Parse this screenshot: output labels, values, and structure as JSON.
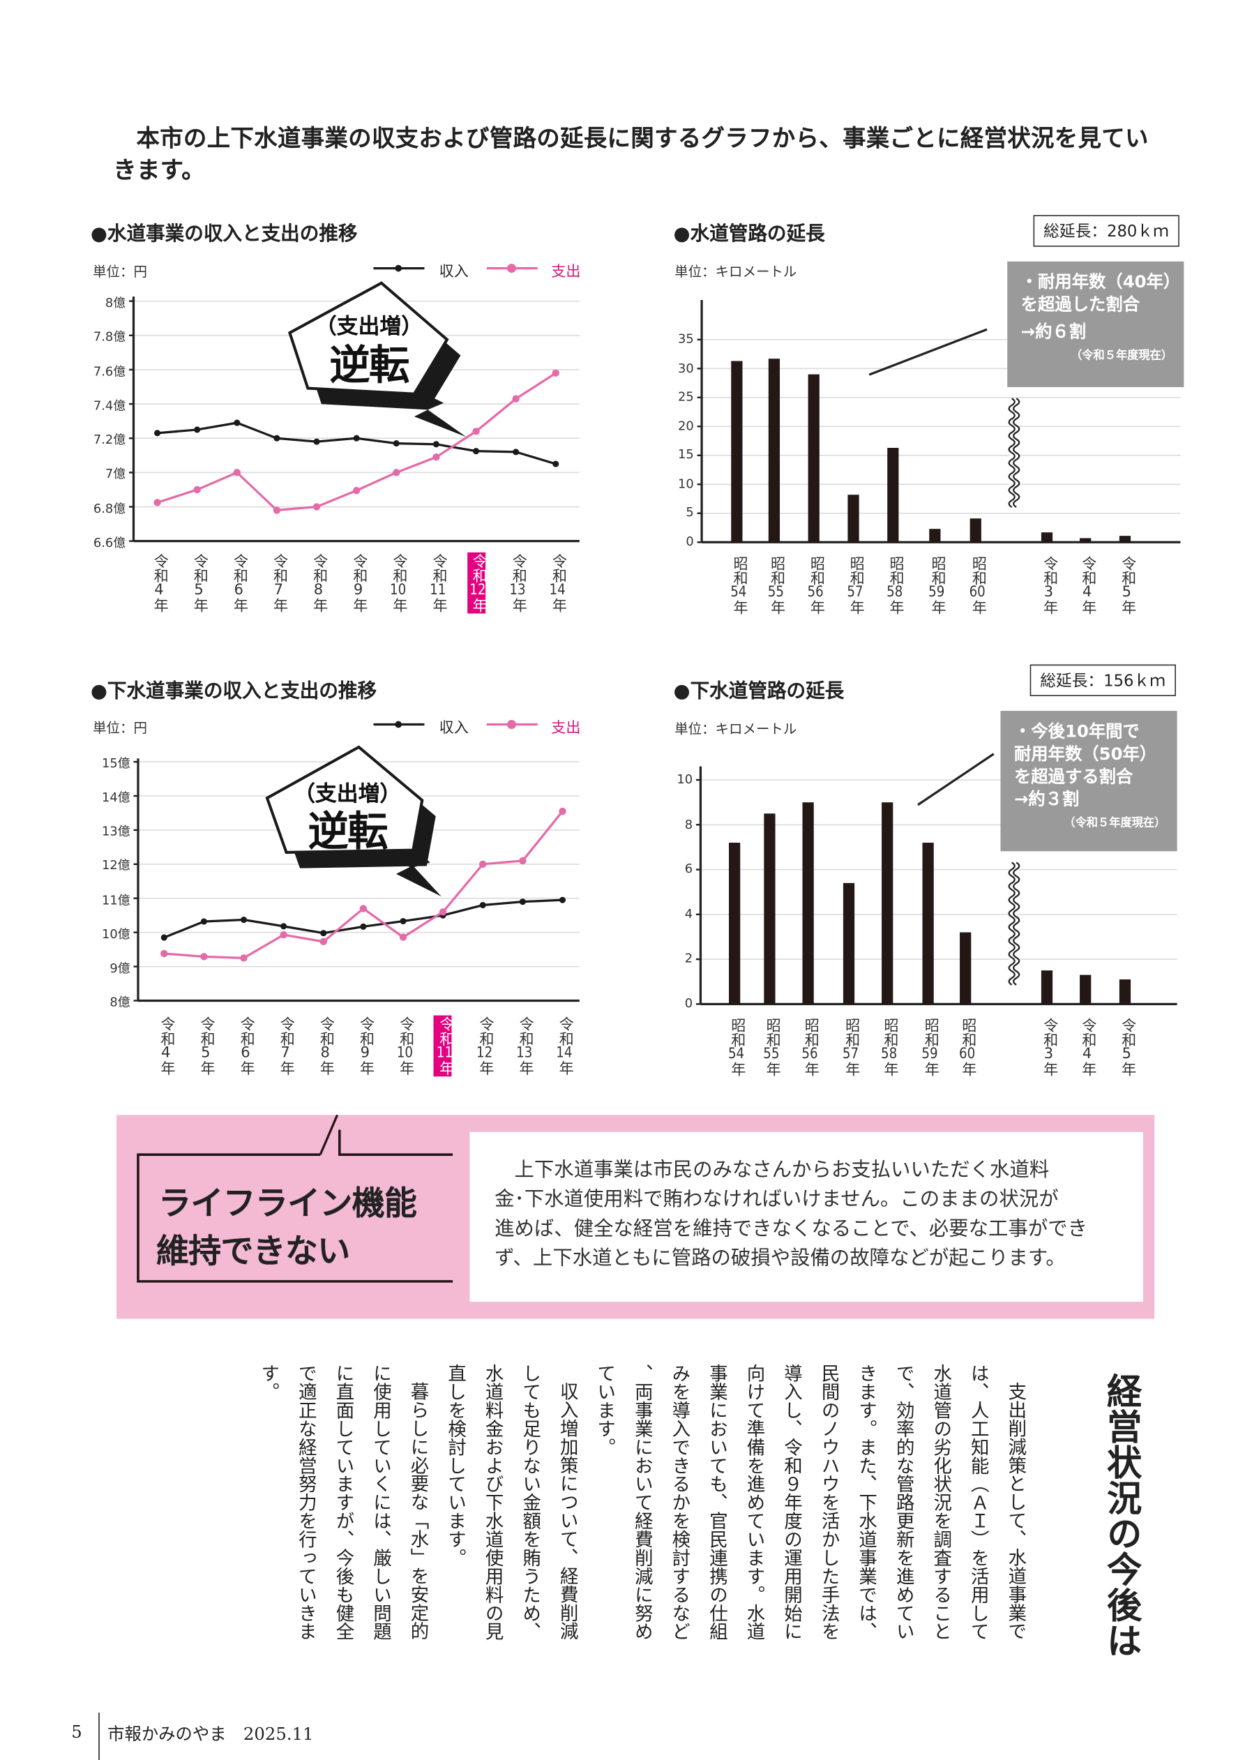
{
  "intro": "本市の上下水道事業の収支および管路の延長に関するグラフから、事業ごとに経営状況を見ていきます。",
  "chart_data": [
    {
      "type": "line",
      "title": "●水道事業の収入と支出の推移",
      "unit": "単位：円",
      "categories": [
        "令和4年",
        "令和5年",
        "令和6年",
        "令和7年",
        "令和8年",
        "令和9年",
        "令和10年",
        "令和11年",
        "令和12年",
        "令和13年",
        "令和14年"
      ],
      "highlight_index": 8,
      "series": [
        {
          "name": "収入",
          "color": "#1a1a1a",
          "values": [
            7.23,
            7.25,
            7.29,
            7.2,
            7.18,
            7.2,
            7.17,
            7.165,
            7.125,
            7.12,
            7.05
          ]
        },
        {
          "name": "支出",
          "color": "#e56aa8",
          "values": [
            6.825,
            6.9,
            7.0,
            6.78,
            6.8,
            6.895,
            7.0,
            7.09,
            7.24,
            7.43,
            7.58
          ]
        }
      ],
      "ylim": [
        6.6,
        8.0
      ],
      "y_ticks": [
        6.6,
        6.8,
        7.0,
        7.2,
        7.4,
        7.6,
        7.8,
        8.0
      ],
      "y_tick_labels": [
        "6.6億",
        "6.8億",
        "7億",
        "7.2億",
        "7.4億",
        "7.6億",
        "7.8億",
        "8億"
      ],
      "badge": {
        "line1": "（支出増）",
        "line2": "逆転"
      },
      "grid": true,
      "legend": "top-right"
    },
    {
      "type": "bar",
      "title": "●水道管路の延長",
      "total": "総延長：280ｋｍ",
      "unit": "単位：キロメートル",
      "categories": [
        "昭和54年",
        "昭和55年",
        "昭和56年",
        "昭和57年",
        "昭和58年",
        "昭和59年",
        "昭和60年",
        "令和3年",
        "令和4年",
        "令和5年"
      ],
      "values": [
        31.3,
        31.7,
        29.0,
        8.2,
        16.3,
        2.3,
        4.1,
        1.7,
        0.7,
        1.1
      ],
      "ylim": [
        0,
        35
      ],
      "y_ticks": [
        0,
        5,
        10,
        15,
        20,
        25,
        30,
        35
      ],
      "y_tick_labels": [
        "0",
        "5",
        "10",
        "15",
        "20",
        "25",
        "30",
        "35"
      ],
      "axis_break_after": "昭和60年",
      "callout": {
        "lines": [
          "・耐用年数（40年）",
          "を超過した割合",
          "→約６割"
        ],
        "note": "（令和５年度現在）"
      },
      "grid": true
    },
    {
      "type": "line",
      "title": "●下水道事業の収入と支出の推移",
      "unit": "単位：円",
      "categories": [
        "令和4年",
        "令和5年",
        "令和6年",
        "令和7年",
        "令和8年",
        "令和9年",
        "令和10年",
        "令和11年",
        "令和12年",
        "令和13年",
        "令和14年"
      ],
      "highlight_index": 7,
      "series": [
        {
          "name": "収入",
          "color": "#1a1a1a",
          "values": [
            9.85,
            10.32,
            10.37,
            10.18,
            9.98,
            10.17,
            10.33,
            10.5,
            10.8,
            10.9,
            10.95
          ]
        },
        {
          "name": "支出",
          "color": "#e56aa8",
          "values": [
            9.38,
            9.29,
            9.25,
            9.93,
            9.73,
            10.7,
            9.86,
            10.6,
            12.0,
            12.1,
            13.55
          ]
        }
      ],
      "ylim": [
        8,
        15
      ],
      "y_ticks": [
        8,
        9,
        10,
        11,
        12,
        13,
        14,
        15
      ],
      "y_tick_labels": [
        "8億",
        "9億",
        "10億",
        "11億",
        "12億",
        "13億",
        "14億",
        "15億"
      ],
      "badge": {
        "line1": "（支出増）",
        "line2": "逆転"
      },
      "grid": true,
      "legend": "top-right"
    },
    {
      "type": "bar",
      "title": "●下水道管路の延長",
      "total": "総延長：156ｋｍ",
      "unit": "単位：キロメートル",
      "categories": [
        "昭和54年",
        "昭和55年",
        "昭和56年",
        "昭和57年",
        "昭和58年",
        "昭和59年",
        "昭和60年",
        "令和3年",
        "令和4年",
        "令和5年"
      ],
      "values": [
        7.2,
        8.5,
        9.0,
        5.4,
        9.0,
        7.2,
        3.2,
        1.5,
        1.3,
        1.1
      ],
      "ylim": [
        0,
        10
      ],
      "y_ticks": [
        0,
        2,
        4,
        6,
        8,
        10
      ],
      "y_tick_labels": [
        "0",
        "2",
        "4",
        "6",
        "8",
        "10"
      ],
      "axis_break_after": "昭和60年",
      "callout": {
        "lines": [
          "・今後10年間で",
          "耐用年数（50年）",
          "を超過する割合",
          "→約３割"
        ],
        "note": "（令和５年度現在）"
      },
      "grid": true
    }
  ],
  "notice": {
    "title_lines": [
      "ライフライン機能",
      "維持できない"
    ],
    "body_lines": [
      "　上下水道事業は市民のみなさんからお支払いいただく水道料",
      "金･下水道使用料で賄わなければいけません。このままの状況が",
      "進めば、健全な経営を維持できなくなることで、必要な工事ができ",
      "ず、上下水道ともに管路の破損や設備の故障などが起こります。"
    ]
  },
  "article": {
    "title": "経営状況の今後は",
    "paragraphs": [
      "支出削減策として、水道事業では、人工知能（ＡＩ）を活用して水道管の劣化状況を調査することで、効率的な管路更新を進めていきます。また、下水道事業では、民間のノウハウを活かした手法を導入し、令和９年度の運用開始に向けて準備を進めています。水道事業においても、官民連携の仕組みを導入できるかを検討するなど、両事業において経費削減に努めています。",
      "収入増加策について、経費削減しても足りない金額を賄うため、水道料金および下水道使用料の見直しを検討しています。",
      "暮らしに必要な「水」を安定的に使用していくには、厳しい問題に直面していますが、今後も健全で適正な経営努力を行っていきます。"
    ]
  },
  "footer": {
    "page": "5",
    "publication": "市報かみのやま　2025.11"
  }
}
